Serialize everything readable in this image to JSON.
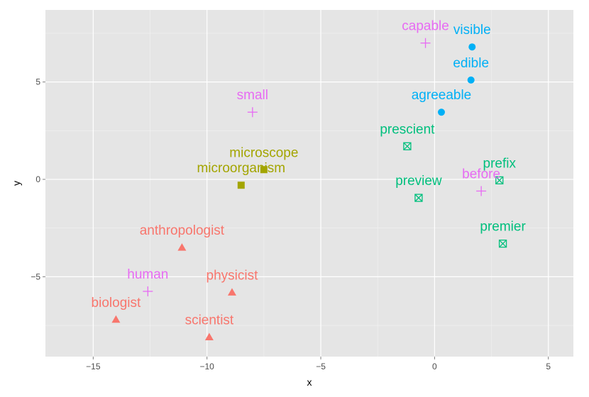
{
  "chart_data": {
    "type": "scatter",
    "xlabel": "x",
    "ylabel": "y",
    "xlim": [
      -17.1,
      6.1
    ],
    "ylim": [
      -9.1,
      8.7
    ],
    "x_ticks": [
      -15,
      -10,
      -5,
      0,
      5
    ],
    "y_ticks": [
      -5,
      0,
      5
    ],
    "x_tick_labels": [
      "−15",
      "−10",
      "−5",
      "0",
      "5"
    ],
    "y_tick_labels": [
      "−5",
      "0",
      "5"
    ],
    "grid": true,
    "background": "#e5e5e5",
    "grid_color": "#ffffff",
    "groups": [
      {
        "color": "#f8766d",
        "shape": "triangle"
      },
      {
        "color": "#a3a500",
        "shape": "square"
      },
      {
        "color": "#00bf7d",
        "shape": "square-cross"
      },
      {
        "color": "#00b0f6",
        "shape": "circle"
      },
      {
        "color": "#e76bf3",
        "shape": "plus"
      }
    ],
    "points": [
      {
        "label": "anthropologist",
        "x": -11.1,
        "y": -3.5,
        "group": 0
      },
      {
        "label": "physicist",
        "x": -8.9,
        "y": -5.8,
        "group": 0
      },
      {
        "label": "biologist",
        "x": -14.0,
        "y": -7.2,
        "group": 0
      },
      {
        "label": "scientist",
        "x": -9.9,
        "y": -8.1,
        "group": 0
      },
      {
        "label": "microscope",
        "x": -7.5,
        "y": 0.5,
        "group": 1
      },
      {
        "label": "microorganism",
        "x": -8.5,
        "y": -0.3,
        "group": 1
      },
      {
        "label": "prescient",
        "x": -1.2,
        "y": 1.7,
        "group": 2
      },
      {
        "label": "preview",
        "x": -0.7,
        "y": -0.95,
        "group": 2
      },
      {
        "label": "prefix",
        "x": 2.85,
        "y": -0.05,
        "group": 2
      },
      {
        "label": "premier",
        "x": 3.0,
        "y": -3.3,
        "group": 2
      },
      {
        "label": "visible",
        "x": 1.65,
        "y": 6.8,
        "group": 3
      },
      {
        "label": "edible",
        "x": 1.6,
        "y": 5.1,
        "group": 3
      },
      {
        "label": "agreeable",
        "x": 0.3,
        "y": 3.45,
        "group": 3
      },
      {
        "label": "capable",
        "x": -0.4,
        "y": 7.0,
        "group": 4
      },
      {
        "label": "small",
        "x": -8.0,
        "y": 3.45,
        "group": 4
      },
      {
        "label": "before",
        "x": 2.05,
        "y": -0.6,
        "group": 4
      },
      {
        "label": "human",
        "x": -12.6,
        "y": -5.75,
        "group": 4
      }
    ]
  }
}
